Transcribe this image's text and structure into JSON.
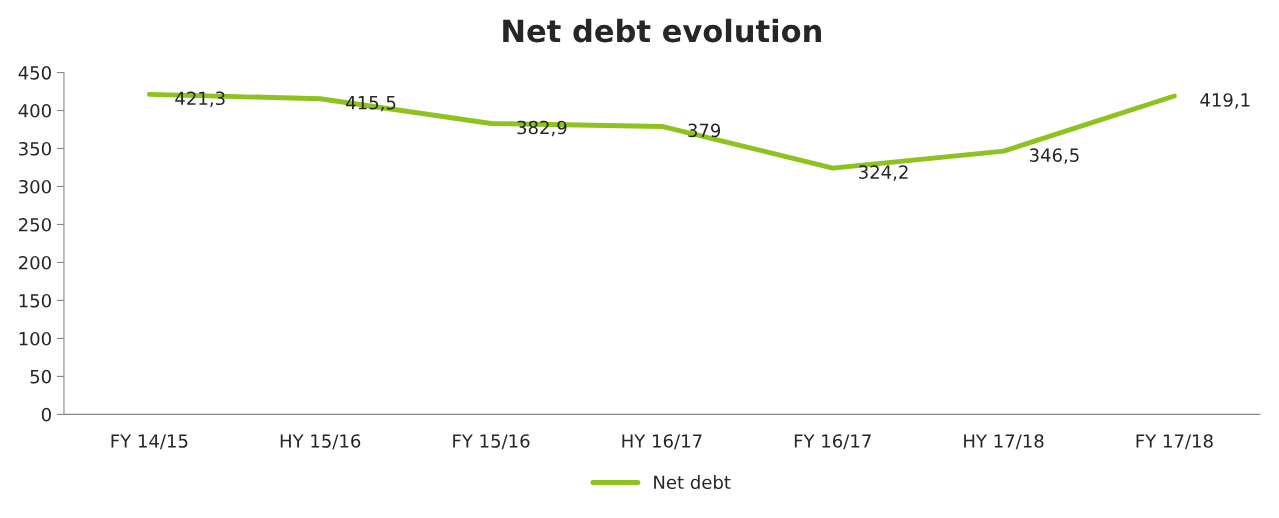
{
  "chart_data": {
    "type": "line",
    "title": "Net debt evolution",
    "categories": [
      "FY 14/15",
      "HY 15/16",
      "FY 15/16",
      "HY 16/17",
      "FY 16/17",
      "HY 17/18",
      "FY 17/18"
    ],
    "series": [
      {
        "name": "Net debt",
        "color": "#8dc21f",
        "values": [
          421.3,
          415.5,
          382.9,
          379,
          324.2,
          346.5,
          419.1
        ],
        "value_labels": [
          "421,3",
          "415,5",
          "382,9",
          "379",
          "324,2",
          "346,5",
          "419,1"
        ]
      }
    ],
    "ylim": [
      0,
      450
    ],
    "yticks": [
      0,
      50,
      100,
      150,
      200,
      250,
      300,
      350,
      400,
      450
    ],
    "legend": "bottom",
    "marker": "none",
    "line_style": "solid"
  }
}
